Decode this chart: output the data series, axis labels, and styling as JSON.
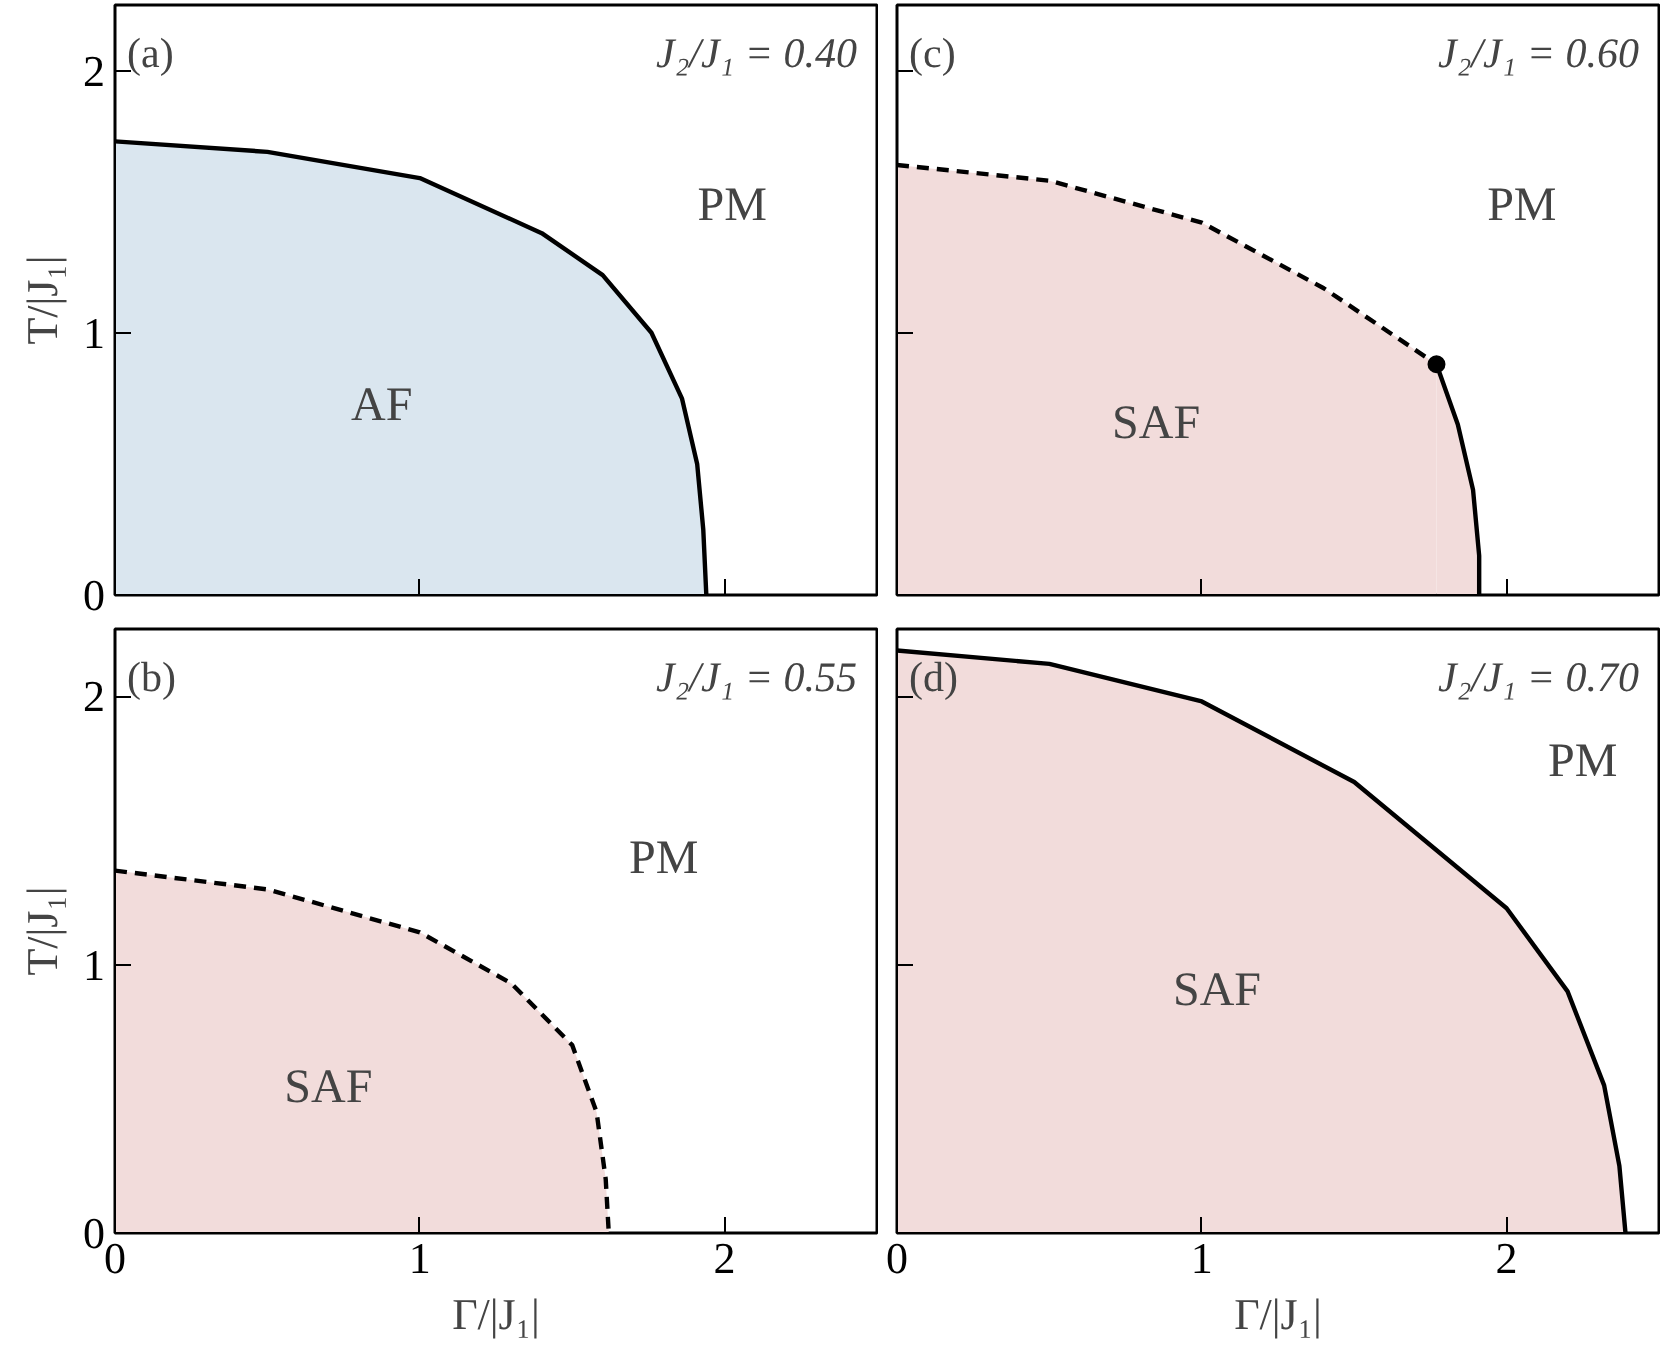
{
  "chart_data": [
    {
      "type": "area",
      "title": "J₂/J₁ = 0.40",
      "ylabel": "T/|J₁|",
      "xlim": [
        0,
        2.5
      ],
      "ylim": [
        0,
        2.25
      ],
      "xticks": [
        0,
        1,
        2
      ],
      "yticks": [
        0,
        1,
        2
      ],
      "tick_labels": "y",
      "grid": false,
      "annotations": [
        "(a)",
        "AF",
        "PM"
      ],
      "series": [
        {
          "color": "#dae6ef",
          "line_style": "solid",
          "x": [
            0,
            0.5,
            1.0,
            1.4,
            1.6,
            1.76,
            1.86,
            1.91,
            1.93,
            1.94
          ],
          "values": [
            1.73,
            1.69,
            1.59,
            1.38,
            1.22,
            1.0,
            0.75,
            0.5,
            0.25,
            0
          ]
        }
      ]
    },
    {
      "type": "area",
      "title": "J₂/J₁ = 0.60",
      "xlim": [
        0,
        2.5
      ],
      "ylim": [
        0,
        2.25
      ],
      "xticks": [
        0,
        1,
        2
      ],
      "yticks": [
        0,
        1,
        2
      ],
      "tick_labels": false,
      "grid": false,
      "annotations": [
        "(c)",
        "SAF",
        "PM"
      ],
      "series": [
        {
          "color": "#f2dcdb",
          "line_style": "dashed",
          "x": [
            0,
            0.5,
            1.0,
            1.4,
            1.77
          ],
          "values": [
            1.64,
            1.58,
            1.42,
            1.17,
            0.88
          ]
        },
        {
          "color": "#f2dcdb",
          "line_style": "solid",
          "x": [
            1.77,
            1.84,
            1.89,
            1.91,
            1.91
          ],
          "values": [
            0.88,
            0.65,
            0.4,
            0.15,
            0
          ]
        },
        {
          "type": "scatter",
          "color": "#000000",
          "marker": "circle",
          "x": [
            1.77
          ],
          "values": [
            0.88
          ]
        }
      ]
    },
    {
      "type": "area",
      "title": "J₂/J₁ = 0.55",
      "xlabel": "Γ/|J₁|",
      "ylabel": "T/|J₁|",
      "xlim": [
        0,
        2.5
      ],
      "ylim": [
        0,
        2.25
      ],
      "xticks": [
        0,
        1,
        2
      ],
      "yticks": [
        0,
        1,
        2
      ],
      "grid": false,
      "annotations": [
        "(b)",
        "SAF",
        "PM"
      ],
      "series": [
        {
          "color": "#f2dcdb",
          "line_style": "dashed",
          "x": [
            0,
            0.5,
            1.0,
            1.3,
            1.5,
            1.58,
            1.61,
            1.62
          ],
          "values": [
            1.35,
            1.28,
            1.12,
            0.93,
            0.7,
            0.45,
            0.2,
            0
          ]
        }
      ]
    },
    {
      "type": "area",
      "title": "J₂/J₁ = 0.70",
      "xlabel": "Γ/|J₁|",
      "xlim": [
        0,
        2.5
      ],
      "ylim": [
        0,
        2.25
      ],
      "xticks": [
        0,
        1,
        2
      ],
      "yticks": [
        0,
        1,
        2
      ],
      "tick_labels": "x",
      "grid": false,
      "annotations": [
        "(d)",
        "SAF",
        "PM"
      ],
      "series": [
        {
          "color": "#f2dcdb",
          "line_style": "solid",
          "x": [
            0,
            0.5,
            1.0,
            1.5,
            2.0,
            2.2,
            2.32,
            2.37,
            2.39
          ],
          "values": [
            2.17,
            2.12,
            1.98,
            1.68,
            1.21,
            0.9,
            0.55,
            0.25,
            0
          ]
        }
      ]
    }
  ]
}
